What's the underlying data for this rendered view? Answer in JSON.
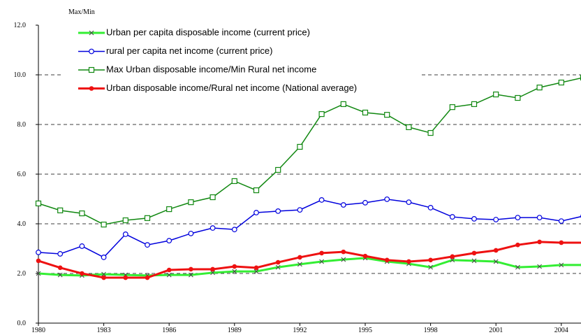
{
  "chart_data": {
    "type": "line",
    "ylabel": "Max/Min",
    "x": [
      1980,
      1981,
      1982,
      1983,
      1984,
      1985,
      1986,
      1987,
      1988,
      1989,
      1990,
      1991,
      1992,
      1993,
      1994,
      1995,
      1996,
      1997,
      1998,
      1999,
      2000,
      2001,
      2002,
      2003,
      2004,
      2005
    ],
    "xlim": [
      1980,
      2005
    ],
    "xticks": [
      1980,
      1983,
      1986,
      1989,
      1992,
      1995,
      1998,
      2001,
      2004
    ],
    "ylim": [
      0,
      12
    ],
    "yticks": [
      {
        "value": 0,
        "label": "0.0"
      },
      {
        "value": 2,
        "label": "2.0"
      },
      {
        "value": 4,
        "label": "4.0"
      },
      {
        "value": 6,
        "label": "6.0"
      },
      {
        "value": 8,
        "label": "8.0"
      },
      {
        "value": 10,
        "label": "10.0"
      },
      {
        "value": 12,
        "label": "12.0"
      }
    ],
    "grid": true,
    "series": [
      {
        "name": "Urban per capita disposable income (current price)",
        "color": "#33ee33",
        "marker": "x",
        "values": [
          2.0,
          1.94,
          1.92,
          1.97,
          1.94,
          1.92,
          1.94,
          1.94,
          2.03,
          2.08,
          2.08,
          2.25,
          2.37,
          2.48,
          2.56,
          2.62,
          2.48,
          2.39,
          2.25,
          2.54,
          2.51,
          2.48,
          2.25,
          2.28,
          2.34,
          2.34
        ]
      },
      {
        "name": "rural per capita net income (current price)",
        "color": "#0000dd",
        "marker": "circle",
        "values": [
          2.85,
          2.79,
          3.1,
          2.65,
          3.58,
          3.15,
          3.32,
          3.61,
          3.83,
          3.77,
          4.45,
          4.51,
          4.56,
          4.96,
          4.76,
          4.85,
          4.99,
          4.87,
          4.65,
          4.28,
          4.2,
          4.17,
          4.25,
          4.25,
          4.11,
          4.31
        ]
      },
      {
        "name": "Max Urban disposable income/Min Rural net income",
        "color": "#118811",
        "marker": "square",
        "values": [
          4.82,
          4.54,
          4.42,
          3.97,
          4.14,
          4.23,
          4.59,
          4.87,
          5.07,
          5.72,
          5.35,
          6.17,
          7.1,
          8.42,
          8.82,
          8.48,
          8.39,
          7.89,
          7.66,
          8.7,
          8.82,
          9.21,
          9.07,
          9.49,
          9.69,
          9.89
        ]
      },
      {
        "name": "Urban disposable income/Rural net income (National average)",
        "color": "#ee1111",
        "marker": "dot",
        "values": [
          2.51,
          2.23,
          2.0,
          1.83,
          1.83,
          1.83,
          2.14,
          2.17,
          2.17,
          2.28,
          2.23,
          2.45,
          2.65,
          2.82,
          2.87,
          2.7,
          2.54,
          2.48,
          2.54,
          2.68,
          2.82,
          2.93,
          3.15,
          3.27,
          3.24,
          3.24
        ]
      }
    ]
  }
}
